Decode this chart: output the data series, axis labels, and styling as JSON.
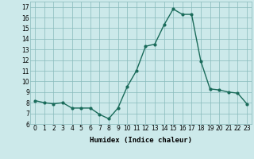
{
  "x": [
    0,
    1,
    2,
    3,
    4,
    5,
    6,
    7,
    8,
    9,
    10,
    11,
    12,
    13,
    14,
    15,
    16,
    17,
    18,
    19,
    20,
    21,
    22,
    23
  ],
  "y": [
    8.2,
    8.0,
    7.9,
    8.0,
    7.5,
    7.5,
    7.5,
    6.9,
    6.5,
    7.5,
    9.5,
    11.0,
    13.3,
    13.5,
    15.3,
    16.8,
    16.3,
    16.3,
    11.9,
    9.3,
    9.2,
    9.0,
    8.9,
    7.9
  ],
  "line_color": "#1a6b5a",
  "marker": "o",
  "marker_size": 2.0,
  "line_width": 1.0,
  "bg_color": "#cce9ea",
  "grid_color": "#88bbbb",
  "xlabel": "Humidex (Indice chaleur)",
  "ylim": [
    6,
    17.5
  ],
  "yticks": [
    6,
    7,
    8,
    9,
    10,
    11,
    12,
    13,
    14,
    15,
    16,
    17
  ],
  "xticks": [
    0,
    1,
    2,
    3,
    4,
    5,
    6,
    7,
    8,
    9,
    10,
    11,
    12,
    13,
    14,
    15,
    16,
    17,
    18,
    19,
    20,
    21,
    22,
    23
  ],
  "axis_fontsize": 6.5,
  "tick_fontsize": 5.5
}
